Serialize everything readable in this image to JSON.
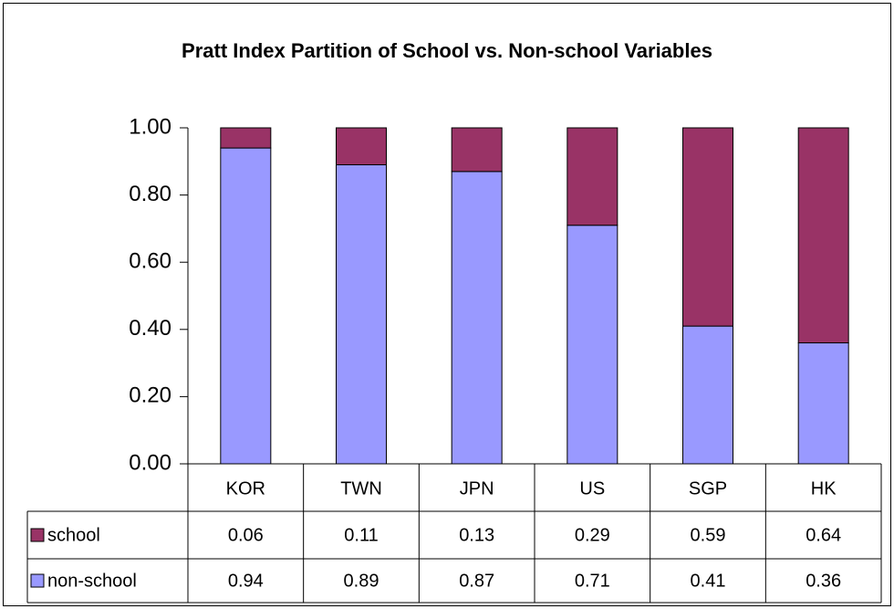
{
  "chart_data": {
    "type": "bar",
    "stacked": true,
    "title": "Pratt Index Partition of School vs. Non-school Variables",
    "categories": [
      "KOR",
      "TWN",
      "JPN",
      "US",
      "SGP",
      "HK"
    ],
    "series": [
      {
        "name": "school",
        "color": "#993366",
        "values": [
          0.06,
          0.11,
          0.13,
          0.29,
          0.59,
          0.64
        ]
      },
      {
        "name": "non-school",
        "color": "#9999ff",
        "values": [
          0.94,
          0.89,
          0.87,
          0.71,
          0.41,
          0.36
        ]
      }
    ],
    "ylim": [
      0,
      1
    ],
    "yticks": [
      {
        "value": 0,
        "label": "0.00"
      },
      {
        "value": 0.2,
        "label": "0.20"
      },
      {
        "value": 0.4,
        "label": "0.40"
      },
      {
        "value": 0.6,
        "label": "0.60"
      },
      {
        "value": 0.8,
        "label": "0.80"
      },
      {
        "value": 1,
        "label": "1.00"
      }
    ],
    "grid": false,
    "data_table": true
  }
}
